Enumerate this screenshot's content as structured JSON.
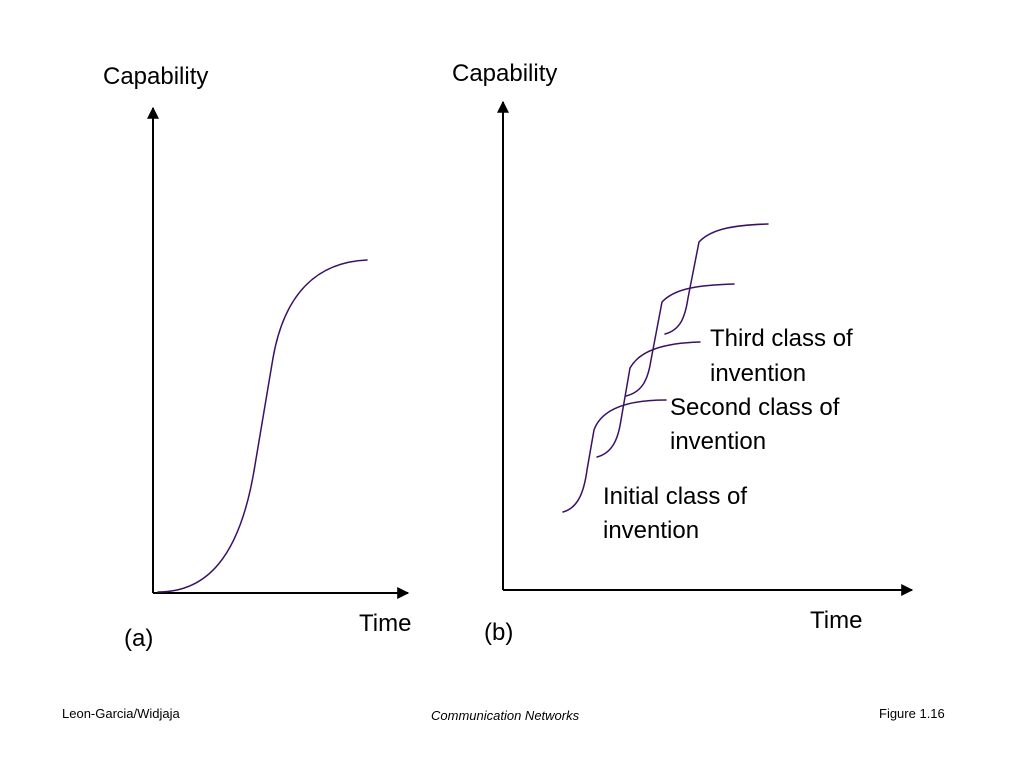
{
  "colors": {
    "curve": "#3b1263",
    "axis": "#000000"
  },
  "panel_a": {
    "y_label": "Capability",
    "x_label": "Time",
    "caption": "(a)"
  },
  "panel_b": {
    "y_label": "Capability",
    "x_label": "Time",
    "caption": "(b)",
    "labels": {
      "third_line1": "Third class of",
      "third_line2": "invention",
      "second_line1": "Second class of",
      "second_line2": "invention",
      "initial_line1": "Initial class of",
      "initial_line2": "invention"
    }
  },
  "footer": {
    "authors": "Leon-Garcia/Widjaja",
    "book": "Communication Networks",
    "figure": "Figure 1.16"
  }
}
